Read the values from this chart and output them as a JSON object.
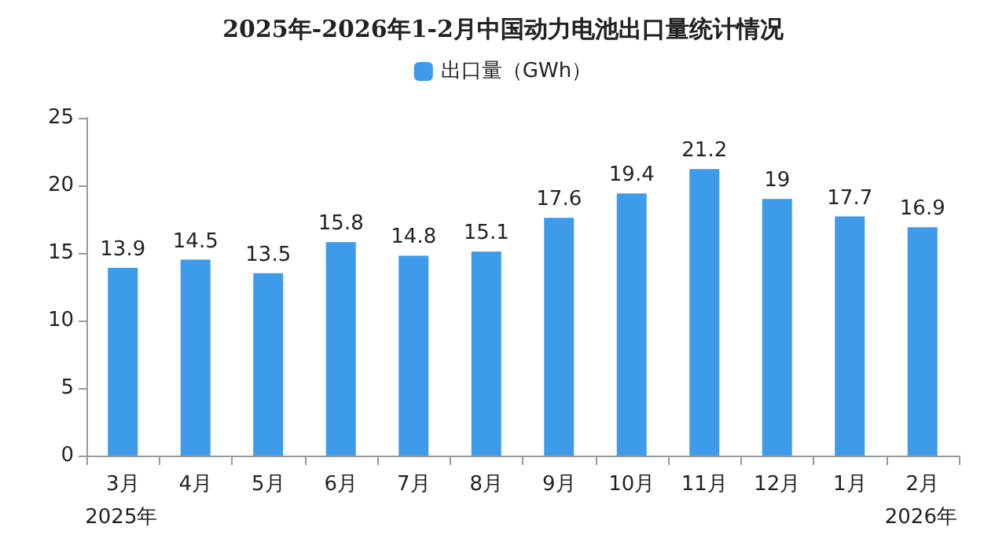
{
  "chart_data": {
    "type": "bar",
    "title": "2025年-2026年1-2月中国动力电池出口量统计情况",
    "categories": [
      "3月",
      "4月",
      "5月",
      "6月",
      "7月",
      "8月",
      "9月",
      "10月",
      "11月",
      "12月",
      "1月",
      "2月"
    ],
    "series": [
      {
        "name": "出口量（GWh）",
        "color": "#3d9be9",
        "values": [
          13.9,
          14.5,
          13.5,
          15.8,
          14.8,
          15.1,
          17.6,
          19.4,
          21.2,
          19,
          17.7,
          16.9
        ]
      }
    ],
    "ylim": [
      0,
      25
    ],
    "yticks": [
      0,
      5,
      10,
      15,
      20,
      25
    ],
    "grid": false,
    "legend": "top",
    "data_labels": true,
    "annotations": [
      "2025年",
      "2026年"
    ]
  }
}
